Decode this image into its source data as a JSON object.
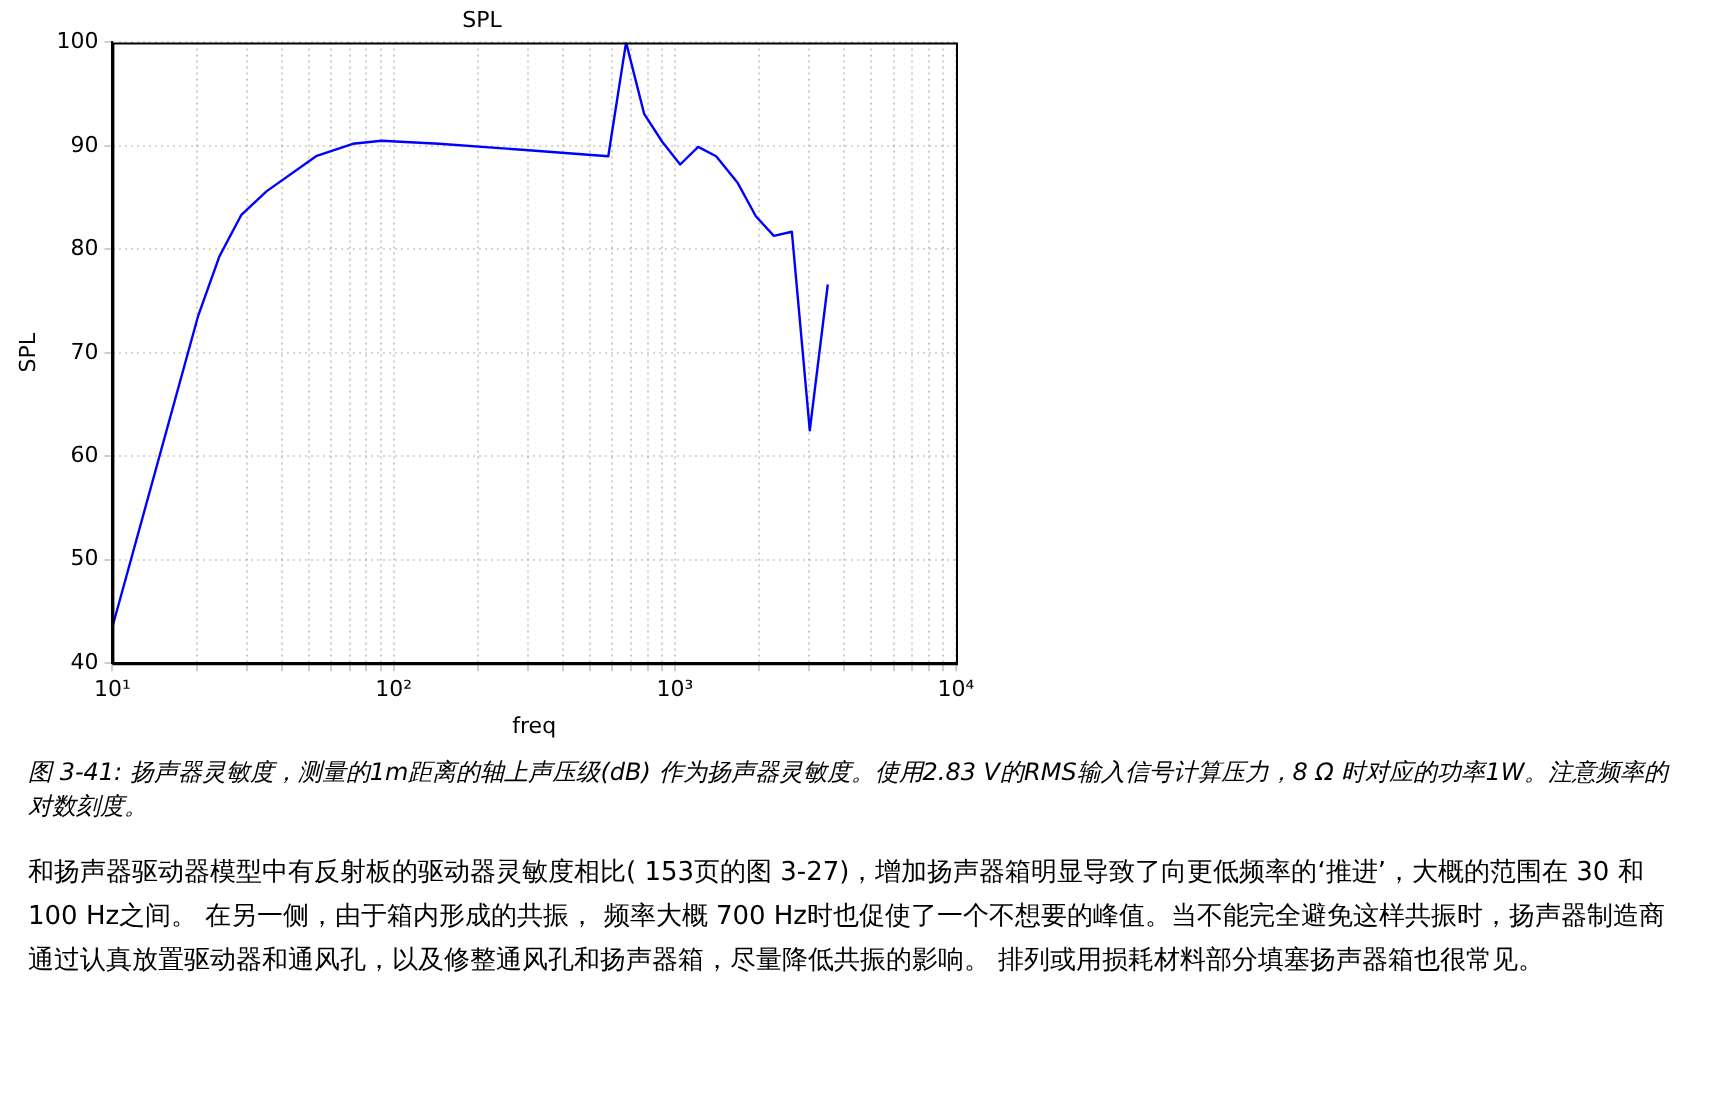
{
  "chart_data": {
    "type": "line",
    "title": "SPL",
    "xlabel": "freq",
    "ylabel": "SPL",
    "x": [
      10,
      20.2,
      24,
      28.7,
      35.3,
      53,
      71.6,
      90.6,
      145,
      294,
      580,
      671,
      778,
      902,
      1045,
      1211,
      1403,
      1675,
      1942,
      2250,
      2608,
      3020,
      3500
    ],
    "series": [
      {
        "color": "#0000ff",
        "values": [
          43.5,
          73.6,
          79.3,
          83.3,
          85.6,
          89.0,
          90.2,
          90.5,
          90.2,
          89.6,
          89.0,
          100,
          93.1,
          90.4,
          88.2,
          89.9,
          89.0,
          86.4,
          83.2,
          81.3,
          81.7,
          62.5,
          76.6
        ]
      }
    ],
    "log": "x",
    "xlim": [
      10,
      10000
    ],
    "xticks": [
      {
        "value": 10,
        "label": "10¹"
      },
      {
        "value": 20,
        "label": null
      },
      {
        "value": 30,
        "label": null
      },
      {
        "value": 40,
        "label": null
      },
      {
        "value": 50,
        "label": null
      },
      {
        "value": 60,
        "label": null
      },
      {
        "value": 70,
        "label": null
      },
      {
        "value": 80,
        "label": null
      },
      {
        "value": 90,
        "label": null
      },
      {
        "value": 100,
        "label": "10²"
      },
      {
        "value": 200,
        "label": null
      },
      {
        "value": 300,
        "label": null
      },
      {
        "value": 400,
        "label": null
      },
      {
        "value": 500,
        "label": null
      },
      {
        "value": 600,
        "label": null
      },
      {
        "value": 700,
        "label": null
      },
      {
        "value": 800,
        "label": null
      },
      {
        "value": 900,
        "label": null
      },
      {
        "value": 1000,
        "label": "10³"
      },
      {
        "value": 2000,
        "label": null
      },
      {
        "value": 3000,
        "label": null
      },
      {
        "value": 4000,
        "label": null
      },
      {
        "value": 5000,
        "label": null
      },
      {
        "value": 6000,
        "label": null
      },
      {
        "value": 7000,
        "label": null
      },
      {
        "value": 8000,
        "label": null
      },
      {
        "value": 9000,
        "label": null
      },
      {
        "value": 10000,
        "label": "10⁴"
      }
    ],
    "ylim": [
      40,
      100
    ],
    "yticks": [
      40,
      50,
      60,
      70,
      80,
      90,
      100
    ],
    "grid": true,
    "marker": "none",
    "line_style": "solid",
    "annotations": [
      "图 3-41: 扬声器灵敏度，测量的1m距离的轴上声压级(dB) 作为扬声器灵敏度。使用2.83 V的RMS输入信号计算压力，8 Ω 时对应的功率1W。注意频率的对数刻度。",
      "和扬声器驱动器模型中有反射板的驱动器灵敏度相比( 153页的图 3-27)，增加扬声器箱明显导致了向更低频率的‘推进’，大概的范围在 30 和 100 Hz之间。 在另一侧，由于箱内形成的共振， 频率大概 700 Hz时也促使了一个不想要的峰值。当不能完全避免这样共振时，扬声器制造商通过认真放置驱动器和通风孔，以及修整通风孔和扬声器箱，尽量降低共振的影响。 排列或用损耗材料部分填塞扬声器箱也很常见。"
    ]
  }
}
